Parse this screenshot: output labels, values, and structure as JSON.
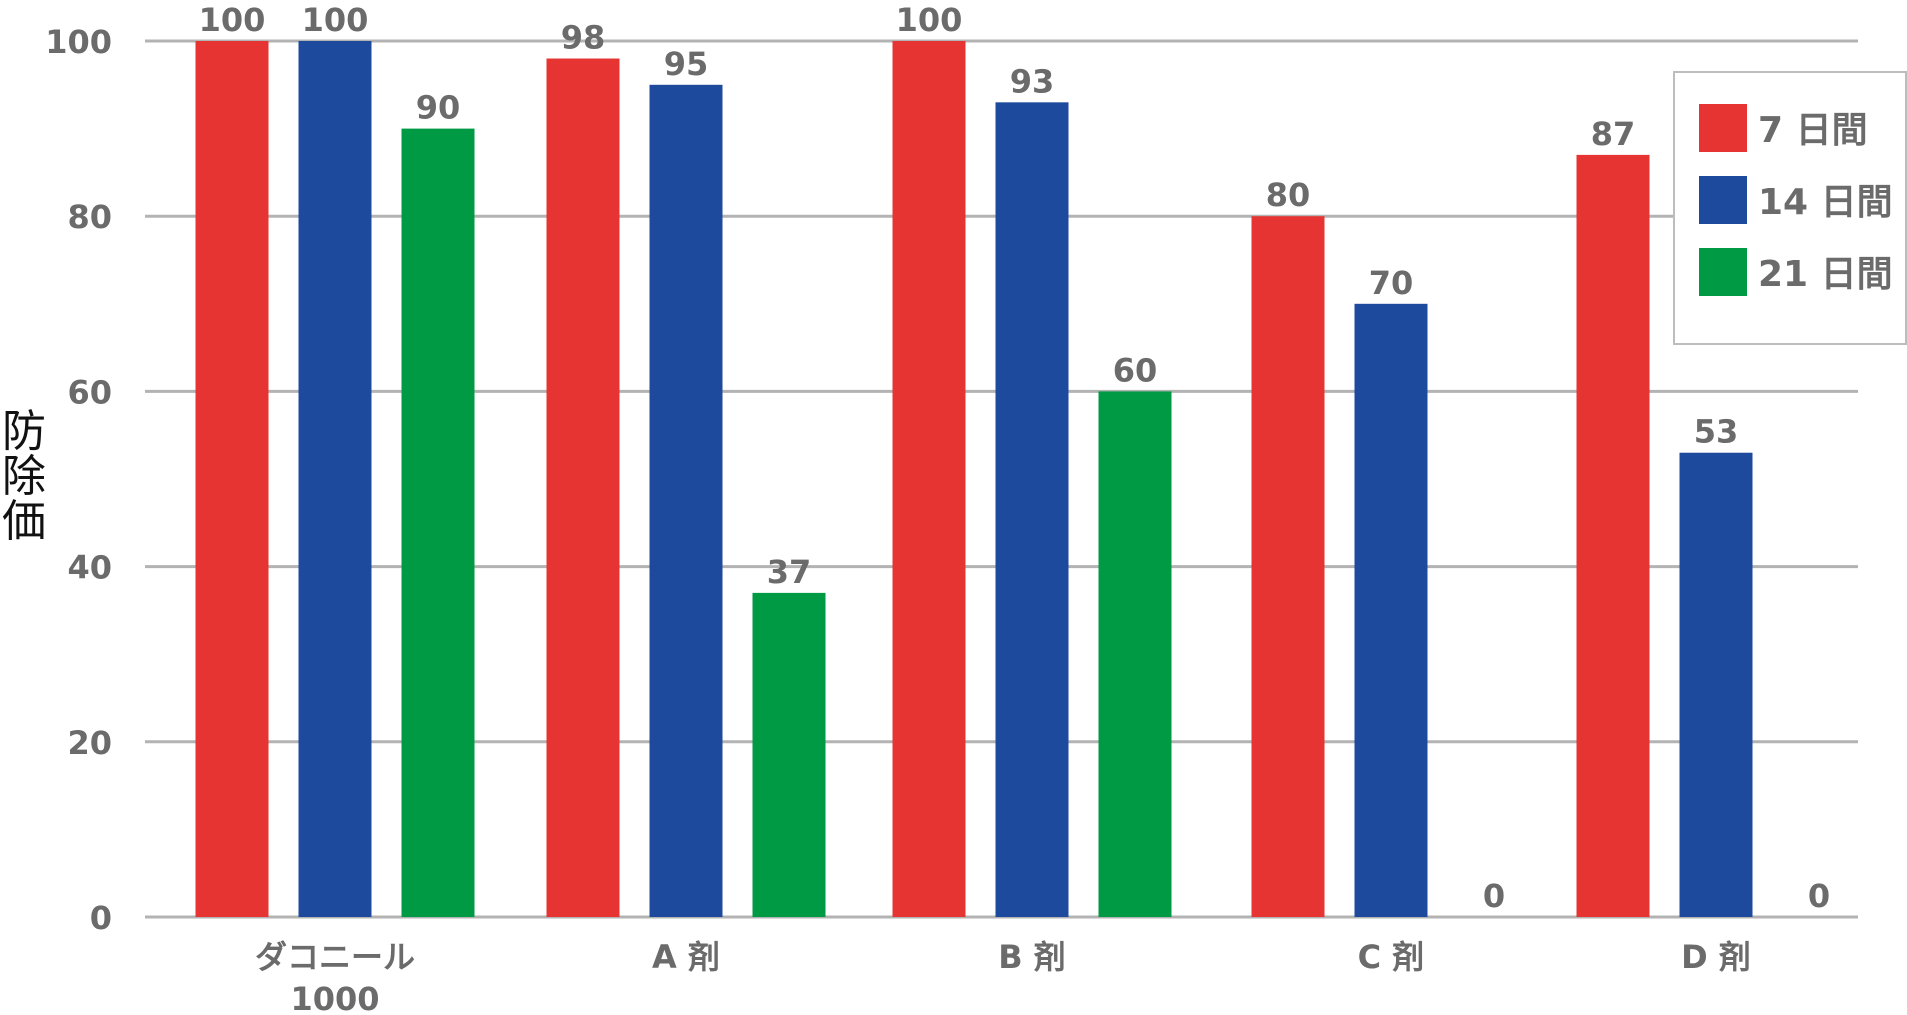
{
  "chart_data": {
    "type": "bar",
    "ylabel": "防除価",
    "ylim": [
      0,
      100
    ],
    "yticks": [
      0,
      20,
      40,
      60,
      80,
      100
    ],
    "grid": true,
    "legend_position": "top-right",
    "categories": [
      [
        "ダコニール",
        "1000"
      ],
      [
        "A 剤"
      ],
      [
        "B 剤"
      ],
      [
        "C 剤"
      ],
      [
        "D 剤"
      ]
    ],
    "series": [
      {
        "name": "7 日間",
        "color": "#e53431",
        "values": [
          100,
          98,
          100,
          80,
          87
        ]
      },
      {
        "name": "14 日間",
        "color": "#1d4a9c",
        "values": [
          100,
          95,
          93,
          70,
          53
        ]
      },
      {
        "name": "21 日間",
        "color": "#009a44",
        "values": [
          90,
          37,
          60,
          0,
          0
        ]
      }
    ]
  }
}
